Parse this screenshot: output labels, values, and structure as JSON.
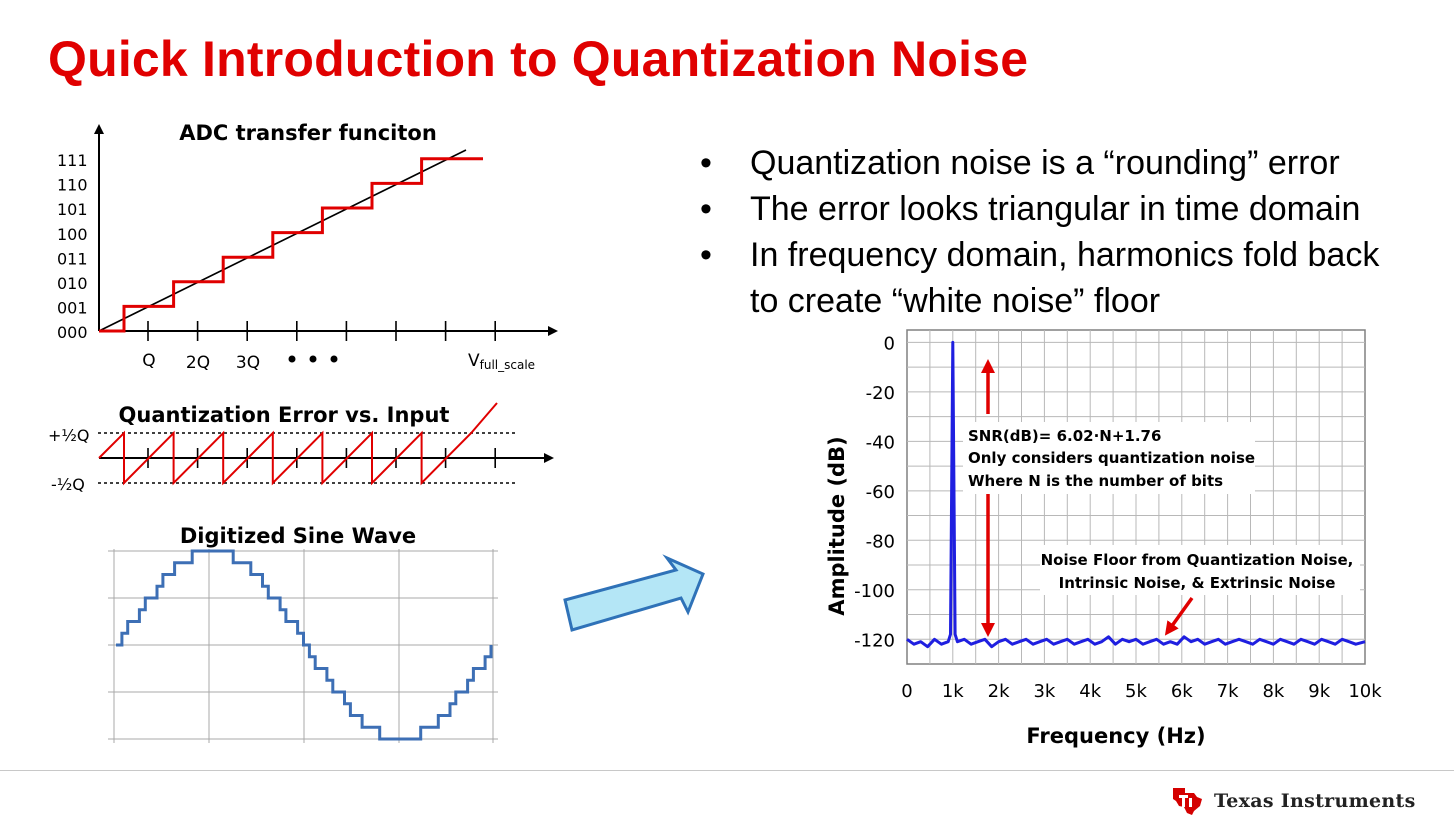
{
  "title": "Quick Introduction to Quantization Noise",
  "transfer": {
    "title": "ADC transfer funciton",
    "y_codes": [
      "111",
      "110",
      "101",
      "100",
      "011",
      "010",
      "001",
      "000"
    ],
    "x_ticks": [
      "Q",
      "2Q",
      "3Q"
    ],
    "x_end_main": "V",
    "x_end_sub": "full_scale"
  },
  "error_plot": {
    "title": "Quantization Error vs. Input",
    "upper_label": "+½Q",
    "lower_label": "-½Q"
  },
  "sine_plot": {
    "title": "Digitized Sine Wave"
  },
  "bullets": [
    "Quantization noise is a “rounding” error",
    "The error looks triangular in time domain",
    "In frequency domain, harmonics fold back to create “white noise” floor"
  ],
  "bullet_lines": [
    [
      "Quantization noise is a “rounding” error"
    ],
    [
      "The error looks triangular in time domain"
    ],
    [
      "In frequency domain, harmonics fold back",
      "to create “white noise” floor"
    ]
  ],
  "chart_data": {
    "type": "line",
    "xlabel": "Frequency (Hz)",
    "ylabel": "Amplitude (dB)",
    "xlim": [
      0,
      10000
    ],
    "ylim": [
      -130,
      5
    ],
    "x_tick_labels": [
      "0",
      "1k",
      "2k",
      "3k",
      "4k",
      "5k",
      "6k",
      "7k",
      "8k",
      "9k",
      "10k"
    ],
    "y_tick_labels": [
      "0",
      "-20",
      "-40",
      "-60",
      "-80",
      "-100",
      "-120"
    ],
    "grid": true,
    "series": [
      {
        "color": "#1f1fe0",
        "x": [
          0,
          150,
          300,
          450,
          600,
          750,
          900,
          950,
          1000,
          1050,
          1100,
          1250,
          1400,
          1550,
          1700,
          1850,
          2000,
          2150,
          2300,
          2450,
          2600,
          2750,
          2900,
          3050,
          3200,
          3350,
          3500,
          3650,
          3800,
          3950,
          4100,
          4250,
          4400,
          4550,
          4700,
          4850,
          5000,
          5150,
          5300,
          5450,
          5600,
          5750,
          5900,
          6050,
          6200,
          6350,
          6500,
          6650,
          6800,
          6950,
          7100,
          7250,
          7400,
          7550,
          7700,
          7850,
          8000,
          8150,
          8300,
          8450,
          8600,
          8750,
          8900,
          9050,
          9200,
          9350,
          9500,
          9650,
          9800,
          10000
        ],
        "y": [
          -120,
          -122,
          -121,
          -123,
          -120,
          -122,
          -121,
          -118,
          0,
          -118,
          -121,
          -120,
          -122,
          -121,
          -120,
          -123,
          -121,
          -120,
          -122,
          -121,
          -120,
          -122,
          -121,
          -120,
          -122,
          -121,
          -120,
          -122,
          -121,
          -120,
          -122,
          -121,
          -119,
          -122,
          -120,
          -121,
          -120,
          -122,
          -121,
          -120,
          -122,
          -121,
          -122,
          -119,
          -121,
          -120,
          -122,
          -121,
          -120,
          -122,
          -121,
          -120,
          -121,
          -122,
          -120,
          -121,
          -122,
          -120,
          -121,
          -122,
          -120,
          -121,
          -122,
          -120,
          -121,
          -122,
          -120,
          -121,
          -122,
          -121
        ]
      }
    ],
    "annotations": [
      "SNR(dB)= 6.02·N+1.76",
      "Only considers quantization noise",
      "Where N is the number of bits",
      "Noise Floor from Quantization Noise,",
      "Intrinsic Noise, & Extrinsic Noise"
    ],
    "colors": {
      "arrow": "#e00000",
      "grid": "#b8b8b8"
    }
  },
  "brand": {
    "name": "Texas Instruments"
  },
  "colors": {
    "title": "#e00000",
    "staircase": "#e00000",
    "sine": "#3d6fb5",
    "arrow_fill": "#b4e6f6",
    "arrow_stroke": "#2f72b8"
  },
  "icons": {
    "brand_logo": "texas-state-logo-icon",
    "transition": "right-arrow-icon"
  }
}
